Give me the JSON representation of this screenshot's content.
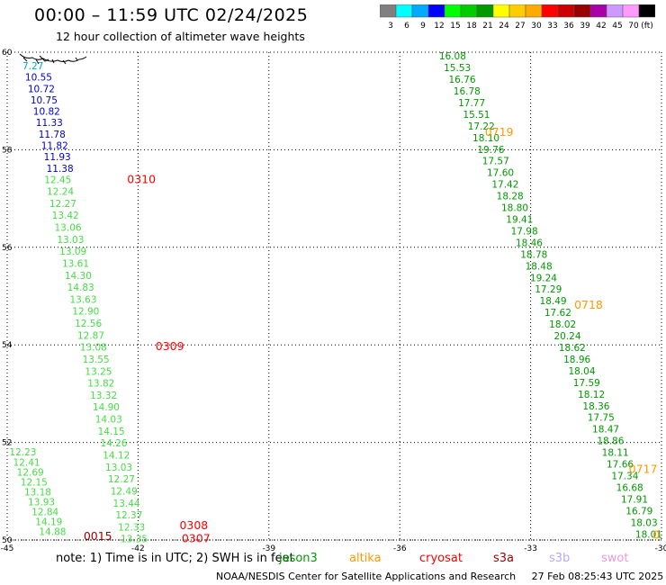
{
  "header": {
    "title": "00:00 – 11:59 UTC 02/24/2025",
    "subtitle": "12 hour collection of altimeter wave heights"
  },
  "legend": {
    "colors": [
      "#808080",
      "#00ffff",
      "#00aaff",
      "#0000ff",
      "#00ff00",
      "#00cc00",
      "#009900",
      "#ffff00",
      "#ffcc00",
      "#ffaa00",
      "#ff0000",
      "#cc0000",
      "#990000",
      "#aa00aa",
      "#cc99ff",
      "#ff99ff",
      "#000000"
    ],
    "labels": [
      "3",
      "6",
      "9",
      "12",
      "15",
      "18",
      "21",
      "24",
      "27",
      "30",
      "33",
      "36",
      "39",
      "42",
      "45",
      "70",
      "(ft)"
    ]
  },
  "map": {
    "lon_ticks": [
      "-45",
      "-42",
      "-39",
      "-36",
      "-33",
      "-30"
    ],
    "lat_ticks": [
      "60",
      "58",
      "56",
      "54",
      "52",
      "50"
    ],
    "lon_range": [
      -45,
      -30
    ],
    "lat_range": [
      50,
      60
    ],
    "tracks": [
      {
        "color": "#0000cc",
        "values": [
          "7.27",
          "10.55",
          "10.72",
          "10.75",
          "10.82",
          "11.33",
          "11.78",
          "11.82",
          "11.93",
          "11.38"
        ]
      },
      {
        "color": "#44dd44",
        "values": [
          "12.45",
          "12.24",
          "12.27",
          "13.42",
          "13.06",
          "13.03",
          "13.09",
          "13.61",
          "14.30",
          "14.83",
          "13.63",
          "12.90",
          "12.56",
          "12.87",
          "13.08",
          "13.55",
          "13.25",
          "13.82",
          "13.32",
          "14.90",
          "14.03",
          "14.15",
          "14.26",
          "14.12",
          "13.03",
          "12.27",
          "12.49",
          "13.44",
          "12.37",
          "12.33",
          "13.35"
        ]
      },
      {
        "color": "#44dd44",
        "values": [
          "12.23",
          "12.41",
          "12.69",
          "12.15",
          "13.18",
          "13.93",
          "12.84",
          "14.19",
          "14.88"
        ]
      },
      {
        "color": "#009900",
        "values": [
          "16.08",
          "15.53",
          "16.76",
          "16.78",
          "17.77",
          "15.51",
          "17.22",
          "18.10",
          "19.76",
          "17.57",
          "17.60",
          "17.42",
          "18.28",
          "18.80",
          "19.41",
          "17.98",
          "18.46",
          "18.78",
          "18.48",
          "19.24",
          "17.29",
          "18.49",
          "17.62",
          "18.02",
          "20.24",
          "18.62",
          "18.96",
          "18.04",
          "17.59",
          "18.12",
          "18.36",
          "17.75",
          "18.47",
          "18.86",
          "18.11",
          "17.66",
          "17.34",
          "16.68",
          "17.91",
          "16.79",
          "18.03",
          "18.01"
        ]
      }
    ],
    "time_labels": [
      "0310",
      "0309",
      "0308",
      "0307",
      "0015",
      "0719",
      "0718",
      "0717",
      "0"
    ]
  },
  "footer": {
    "note": "note:  1) Time is in UTC; 2) SWH is in feet",
    "satellites": [
      {
        "name": "jason3",
        "color": "#009900"
      },
      {
        "name": "altika",
        "color": "#ff9900"
      },
      {
        "name": "cryosat",
        "color": "#ff0000"
      },
      {
        "name": "s3a",
        "color": "#990000"
      },
      {
        "name": "s3b",
        "color": "#bbaaee"
      },
      {
        "name": "swot",
        "color": "#ee99dd"
      }
    ],
    "credit": "NOAA/NESDIS Center for Satellite Applications and Research",
    "timestamp": "27 Feb 08:25:43 UTC 2025"
  }
}
